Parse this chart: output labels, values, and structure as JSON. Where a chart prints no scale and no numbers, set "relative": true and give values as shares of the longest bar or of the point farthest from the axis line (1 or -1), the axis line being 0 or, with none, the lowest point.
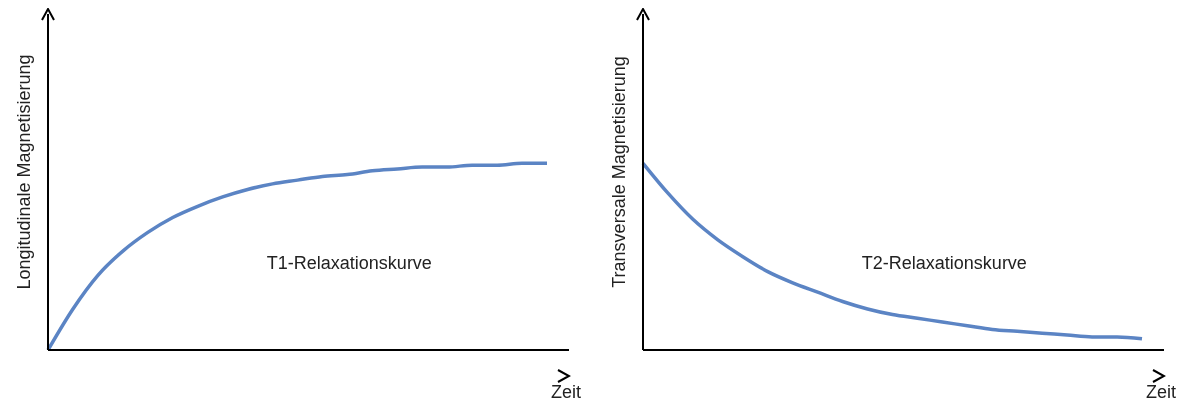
{
  "chart_data": [
    {
      "type": "line",
      "relative": true,
      "ylabel": "Longitudinale Magnetisierung",
      "xlabel": "Zeit",
      "annotations": [
        "T1-Relaxationskurve"
      ],
      "marker": "none",
      "line_style": "solid",
      "categories": [
        null,
        null,
        null,
        null,
        null,
        null,
        null,
        null,
        null,
        null,
        null,
        null,
        null,
        null,
        null,
        null,
        null,
        null,
        null,
        null,
        null
      ],
      "series": [
        {
          "color": "#5b84c4",
          "values": [
            0,
            0.22,
            0.4,
            0.53,
            0.63,
            0.71,
            0.77,
            0.82,
            0.86,
            0.89,
            0.91,
            0.93,
            0.94,
            0.96,
            0.97,
            0.98,
            0.98,
            0.99,
            0.99,
            1.0,
            1.0
          ]
        }
      ]
    },
    {
      "type": "line",
      "relative": true,
      "ylabel": "Transversale Magnetisierung",
      "xlabel": "Zeit",
      "annotations": [
        "T2-Relaxationskurve"
      ],
      "marker": "none",
      "line_style": "solid",
      "categories": [
        null,
        null,
        null,
        null,
        null,
        null,
        null,
        null,
        null,
        null,
        null,
        null,
        null,
        null,
        null,
        null,
        null,
        null,
        null,
        null,
        null
      ],
      "series": [
        {
          "color": "#5b84c4",
          "values": [
            1,
            0.84,
            0.7,
            0.59,
            0.5,
            0.42,
            0.36,
            0.31,
            0.26,
            0.22,
            0.19,
            0.17,
            0.15,
            0.13,
            0.11,
            0.1,
            0.09,
            0.08,
            0.07,
            0.07,
            0.06
          ]
        }
      ]
    }
  ]
}
